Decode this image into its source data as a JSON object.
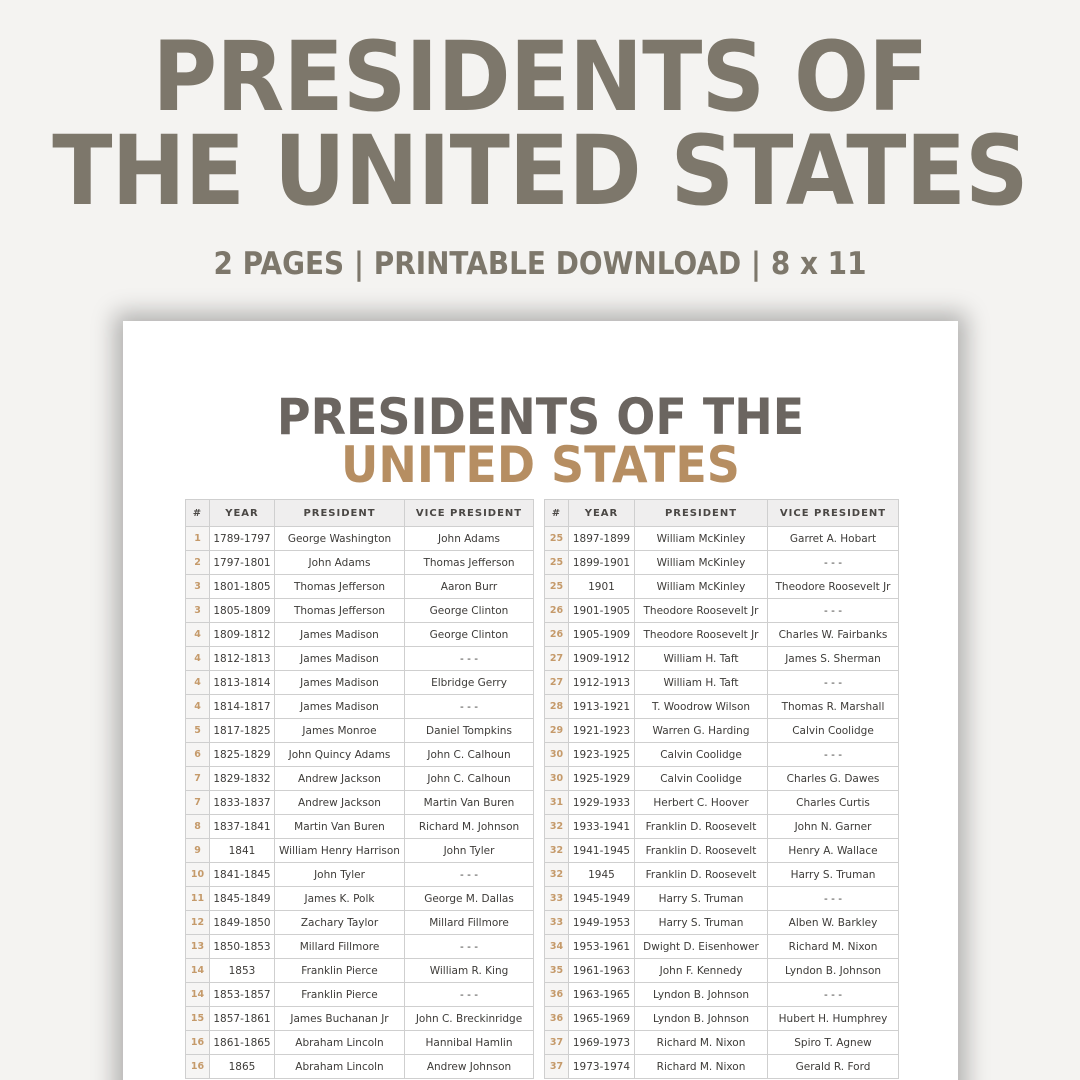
{
  "hero": {
    "title_line1": "PRESIDENTS OF",
    "title_line2": "THE UNITED STATES",
    "subtitle": "2 PAGES | PRINTABLE DOWNLOAD | 8 x 11"
  },
  "sheet": {
    "title_line1": "PRESIDENTS OF THE",
    "title_line2": "UNITED STATES"
  },
  "colors": {
    "hero_text": "#7d776b",
    "sheet_title_dark": "#6b6560",
    "sheet_title_accent": "#b68e62",
    "number_accent": "#c59a6a",
    "background": "#f4f3f1"
  },
  "table": {
    "headers": [
      "#",
      "YEAR",
      "PRESIDENT",
      "VICE PRESIDENT"
    ],
    "left_rows": [
      [
        "1",
        "1789-1797",
        "George Washington",
        "John Adams"
      ],
      [
        "2",
        "1797-1801",
        "John Adams",
        "Thomas Jefferson"
      ],
      [
        "3",
        "1801-1805",
        "Thomas Jefferson",
        "Aaron Burr"
      ],
      [
        "3",
        "1805-1809",
        "Thomas Jefferson",
        "George Clinton"
      ],
      [
        "4",
        "1809-1812",
        "James Madison",
        "George Clinton"
      ],
      [
        "4",
        "1812-1813",
        "James Madison",
        "- - -"
      ],
      [
        "4",
        "1813-1814",
        "James Madison",
        "Elbridge Gerry"
      ],
      [
        "4",
        "1814-1817",
        "James Madison",
        "- - -"
      ],
      [
        "5",
        "1817-1825",
        "James Monroe",
        "Daniel Tompkins"
      ],
      [
        "6",
        "1825-1829",
        "John Quincy Adams",
        "John C. Calhoun"
      ],
      [
        "7",
        "1829-1832",
        "Andrew Jackson",
        "John C. Calhoun"
      ],
      [
        "7",
        "1833-1837",
        "Andrew Jackson",
        "Martin Van Buren"
      ],
      [
        "8",
        "1837-1841",
        "Martin Van Buren",
        "Richard M. Johnson"
      ],
      [
        "9",
        "1841",
        "William Henry Harrison",
        "John Tyler"
      ],
      [
        "10",
        "1841-1845",
        "John Tyler",
        "- - -"
      ],
      [
        "11",
        "1845-1849",
        "James K. Polk",
        "George M. Dallas"
      ],
      [
        "12",
        "1849-1850",
        "Zachary Taylor",
        "Millard Fillmore"
      ],
      [
        "13",
        "1850-1853",
        "Millard Fillmore",
        "- - -"
      ],
      [
        "14",
        "1853",
        "Franklin Pierce",
        "William R. King"
      ],
      [
        "14",
        "1853-1857",
        "Franklin Pierce",
        "- - -"
      ],
      [
        "15",
        "1857-1861",
        "James Buchanan Jr",
        "John C. Breckinridge"
      ],
      [
        "16",
        "1861-1865",
        "Abraham Lincoln",
        "Hannibal Hamlin"
      ],
      [
        "16",
        "1865",
        "Abraham Lincoln",
        "Andrew Johnson"
      ]
    ],
    "right_rows": [
      [
        "25",
        "1897-1899",
        "William McKinley",
        "Garret A. Hobart"
      ],
      [
        "25",
        "1899-1901",
        "William McKinley",
        "- - -"
      ],
      [
        "25",
        "1901",
        "William McKinley",
        "Theodore Roosevelt Jr"
      ],
      [
        "26",
        "1901-1905",
        "Theodore Roosevelt Jr",
        "- - -"
      ],
      [
        "26",
        "1905-1909",
        "Theodore Roosevelt Jr",
        "Charles W. Fairbanks"
      ],
      [
        "27",
        "1909-1912",
        "William H. Taft",
        "James S. Sherman"
      ],
      [
        "27",
        "1912-1913",
        "William H. Taft",
        "- - -"
      ],
      [
        "28",
        "1913-1921",
        "T. Woodrow Wilson",
        "Thomas R. Marshall"
      ],
      [
        "29",
        "1921-1923",
        "Warren G. Harding",
        "Calvin Coolidge"
      ],
      [
        "30",
        "1923-1925",
        "Calvin Coolidge",
        "- - -"
      ],
      [
        "30",
        "1925-1929",
        "Calvin Coolidge",
        "Charles G. Dawes"
      ],
      [
        "31",
        "1929-1933",
        "Herbert C. Hoover",
        "Charles Curtis"
      ],
      [
        "32",
        "1933-1941",
        "Franklin D. Roosevelt",
        "John N. Garner"
      ],
      [
        "32",
        "1941-1945",
        "Franklin D. Roosevelt",
        "Henry A. Wallace"
      ],
      [
        "32",
        "1945",
        "Franklin D. Roosevelt",
        "Harry S. Truman"
      ],
      [
        "33",
        "1945-1949",
        "Harry S. Truman",
        "- - -"
      ],
      [
        "33",
        "1949-1953",
        "Harry S. Truman",
        "Alben W. Barkley"
      ],
      [
        "34",
        "1953-1961",
        "Dwight D. Eisenhower",
        "Richard M. Nixon"
      ],
      [
        "35",
        "1961-1963",
        "John F. Kennedy",
        "Lyndon B. Johnson"
      ],
      [
        "36",
        "1963-1965",
        "Lyndon B. Johnson",
        "- - -"
      ],
      [
        "36",
        "1965-1969",
        "Lyndon B. Johnson",
        "Hubert H. Humphrey"
      ],
      [
        "37",
        "1969-1973",
        "Richard M. Nixon",
        "Spiro T. Agnew"
      ],
      [
        "37",
        "1973-1974",
        "Richard M. Nixon",
        "Gerald R. Ford"
      ]
    ]
  }
}
